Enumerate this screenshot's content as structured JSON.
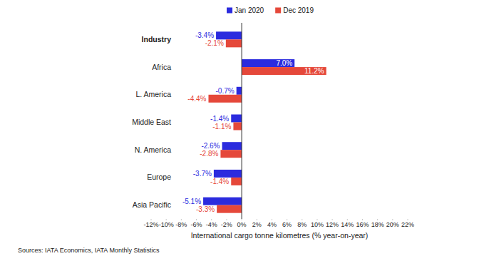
{
  "chart_data": {
    "type": "bar",
    "orientation": "horizontal",
    "categories": [
      "Industry",
      "Africa",
      "L. America",
      "Middle East",
      "N. America",
      "Europe",
      "Asia Pacific"
    ],
    "series": [
      {
        "name": "Jan 2020",
        "color": "#2b2bde",
        "values": [
          -3.4,
          7.0,
          -0.7,
          -1.4,
          -2.6,
          -3.7,
          -5.1
        ],
        "value_labels": [
          "-3.4%",
          "7.0%",
          "-0.7%",
          "-1.4%",
          "-2.6%",
          "-3.7%",
          "-5.1%"
        ]
      },
      {
        "name": "Dec 2019",
        "color": "#e5483a",
        "values": [
          -2.1,
          11.2,
          -4.4,
          -1.1,
          -2.8,
          -1.4,
          -3.3
        ],
        "value_labels": [
          "-2.1%",
          "11.2%",
          "-4.4%",
          "-1.1%",
          "-2.8%",
          "-1.4%",
          "-3.3%"
        ]
      }
    ],
    "x_label": "International cargo tonne kilometres (% year-on-year)",
    "source": "Sources: IATA Economics, IATA Monthly Statistics",
    "xlim": [
      -12,
      22
    ],
    "xticks": [
      {
        "value": -12,
        "label": "-12%"
      },
      {
        "value": -10,
        "label": "-10%"
      },
      {
        "value": -8,
        "label": "-8%"
      },
      {
        "value": -6,
        "label": "-6%"
      },
      {
        "value": -4,
        "label": "-4%"
      },
      {
        "value": -2,
        "label": "-2%"
      },
      {
        "value": 0,
        "label": "0%"
      },
      {
        "value": 2,
        "label": "2%"
      },
      {
        "value": 4,
        "label": "4%"
      },
      {
        "value": 6,
        "label": "6%"
      },
      {
        "value": 8,
        "label": "8%"
      },
      {
        "value": 10,
        "label": "10%"
      },
      {
        "value": 12,
        "label": "12%"
      },
      {
        "value": 14,
        "label": "14%"
      },
      {
        "value": 16,
        "label": "16%"
      },
      {
        "value": 18,
        "label": "18%"
      },
      {
        "value": 20,
        "label": "20%"
      },
      {
        "value": 22,
        "label": "22%"
      }
    ],
    "grid": false,
    "legend": "top",
    "data_labels": true
  }
}
